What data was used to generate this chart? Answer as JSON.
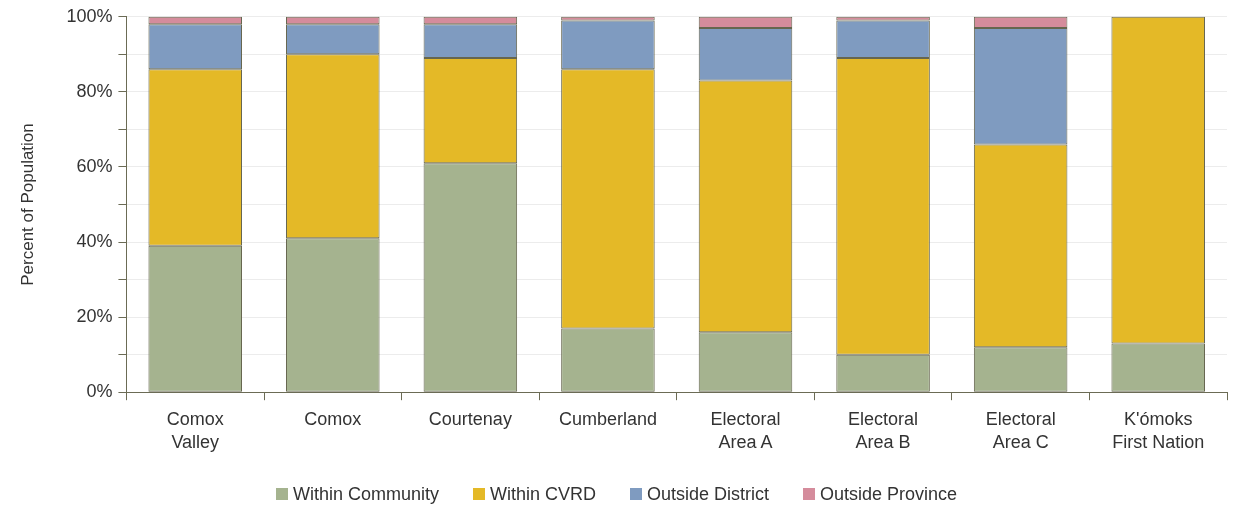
{
  "chart_data": {
    "type": "bar",
    "stacked": true,
    "ylabel": "Percent of Population",
    "categories": [
      "Comox Valley",
      "Comox",
      "Courtenay",
      "Cumberland",
      "Electoral Area A",
      "Electoral Area B",
      "Electoral Area C",
      "K'ómoks First Nation"
    ],
    "series": [
      {
        "name": "Within Community",
        "color": "#a5b38f",
        "values": [
          39,
          41,
          61,
          17,
          16,
          10,
          12,
          13
        ]
      },
      {
        "name": "Within CVRD",
        "color": "#e4b927",
        "values": [
          47,
          49,
          28,
          69,
          67,
          79,
          54,
          87
        ]
      },
      {
        "name": "Outside District",
        "color": "#7f9bc0",
        "values": [
          12,
          8,
          9,
          13,
          14,
          10,
          31,
          0
        ]
      },
      {
        "name": "Outside Province",
        "color": "#d58c9c",
        "values": [
          2,
          2,
          2,
          1,
          3,
          1,
          3,
          0
        ]
      }
    ],
    "ylim": [
      0,
      100
    ],
    "yticks": [
      {
        "value": 0,
        "label": "0%"
      },
      {
        "value": 10,
        "label": null
      },
      {
        "value": 20,
        "label": "20%"
      },
      {
        "value": 30,
        "label": null
      },
      {
        "value": 40,
        "label": "40%"
      },
      {
        "value": 50,
        "label": null
      },
      {
        "value": 60,
        "label": "60%"
      },
      {
        "value": 70,
        "label": null
      },
      {
        "value": 80,
        "label": "80%"
      },
      {
        "value": 90,
        "label": null
      },
      {
        "value": 100,
        "label": "100%"
      }
    ],
    "grid": "y",
    "legend": "bottom"
  }
}
